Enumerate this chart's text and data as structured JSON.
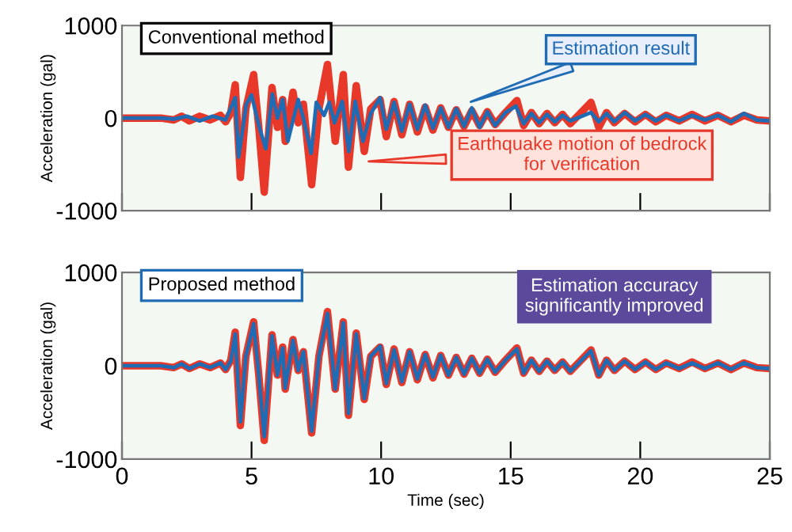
{
  "chart_data": [
    {
      "type": "line",
      "ylabel": "Acceleration (gal)",
      "xlim": [
        0,
        25
      ],
      "ylim": [
        -1000,
        1000
      ],
      "xticks": [
        0,
        5,
        10,
        15,
        20,
        25
      ],
      "yticks": [
        -1000,
        0,
        1000
      ],
      "tick_labels": "y",
      "legend": false,
      "grid": false,
      "annotations": [
        "Conventional method",
        {
          "text": "Estimation result",
          "x": 13.3,
          "y": 160
        },
        {
          "text": "Earthquake motion of bedrock\nfor verification",
          "x": 9.35,
          "y": -470
        }
      ],
      "series": [
        {
          "color": "#e8382a",
          "x": [
            0,
            1.5,
            2.0,
            2.3,
            2.6,
            3.0,
            3.4,
            3.8,
            4.0,
            4.2,
            4.37,
            4.57,
            4.78,
            5.08,
            5.28,
            5.49,
            5.79,
            6.0,
            6.2,
            6.3,
            6.6,
            6.8,
            7.0,
            7.32,
            7.6,
            7.93,
            8.23,
            8.54,
            8.74,
            9.04,
            9.35,
            9.6,
            9.96,
            10.2,
            10.5,
            10.8,
            11.1,
            11.4,
            11.7,
            12.0,
            12.3,
            12.6,
            12.9,
            13.2,
            13.5,
            13.8,
            14.1,
            14.4,
            14.8,
            15.24,
            15.5,
            15.8,
            16.1,
            16.4,
            16.7,
            17.0,
            17.3,
            18.1,
            18.4,
            18.7,
            19.0,
            19.4,
            19.8,
            20.2,
            20.6,
            21.0,
            21.5,
            22.0,
            22.5,
            23.0,
            23.5,
            24.0,
            24.5,
            25
          ],
          "values": [
            0,
            0,
            -20,
            20,
            -30,
            20,
            -20,
            30,
            -40,
            60,
            360,
            -640,
            100,
            470,
            -100,
            -800,
            330,
            -100,
            200,
            -250,
            280,
            -50,
            150,
            -720,
            100,
            580,
            -250,
            470,
            -530,
            350,
            -360,
            100,
            200,
            -200,
            180,
            -180,
            150,
            -150,
            120,
            -130,
            110,
            -100,
            90,
            -90,
            80,
            -80,
            70,
            -70,
            60,
            190,
            -80,
            60,
            -60,
            50,
            -50,
            40,
            -60,
            170,
            -100,
            60,
            -50,
            50,
            -40,
            40,
            -40,
            30,
            -30,
            40,
            -30,
            30,
            -40,
            30,
            -20,
            -30
          ]
        },
        {
          "color": "#1f6cb4",
          "x": [
            0,
            1.5,
            2.0,
            2.5,
            3.0,
            3.5,
            4.0,
            4.37,
            4.5,
            4.8,
            5.0,
            5.3,
            5.55,
            5.8,
            6.0,
            6.2,
            6.4,
            6.8,
            7.0,
            7.3,
            7.5,
            7.8,
            8.0,
            8.2,
            8.5,
            8.75,
            9.0,
            9.3,
            9.6,
            9.96,
            10.2,
            10.5,
            10.8,
            11.1,
            11.4,
            11.7,
            12.0,
            12.3,
            12.6,
            12.9,
            13.2,
            13.5,
            13.8,
            14.1,
            14.4,
            14.8,
            15.2,
            15.5,
            15.8,
            16.1,
            16.4,
            16.7,
            17.0,
            17.3,
            18.1,
            18.4,
            18.7,
            19.0,
            19.4,
            19.8,
            20.2,
            20.6,
            21.0,
            21.5,
            22.0,
            22.5,
            23.0,
            23.5,
            24.0,
            24.5,
            25
          ],
          "values": [
            0,
            0,
            -10,
            20,
            -30,
            20,
            -20,
            220,
            -420,
            150,
            250,
            -100,
            -330,
            260,
            0,
            200,
            -250,
            200,
            0,
            -380,
            170,
            30,
            170,
            -50,
            180,
            -360,
            180,
            -250,
            50,
            220,
            -120,
            170,
            -140,
            150,
            -120,
            140,
            -110,
            110,
            -100,
            100,
            -90,
            110,
            -100,
            70,
            -80,
            60,
            130,
            -60,
            50,
            -50,
            40,
            -40,
            30,
            -30,
            60,
            -40,
            50,
            -40,
            60,
            -30,
            40,
            -30,
            30,
            -30,
            30,
            -20,
            30,
            -40,
            50,
            -20,
            -30
          ]
        }
      ]
    },
    {
      "type": "line",
      "xlabel": "Time (sec)",
      "ylabel": "Acceleration (gal)",
      "xlim": [
        0,
        25
      ],
      "ylim": [
        -1000,
        1000
      ],
      "xticks": [
        0,
        5,
        10,
        15,
        20,
        25
      ],
      "yticks": [
        -1000,
        0,
        1000
      ],
      "legend": false,
      "grid": false,
      "annotations": [
        "Proposed method",
        "Estimation accuracy\nsignificantly improved"
      ],
      "series": [
        {
          "color": "#e8382a",
          "x": [
            0,
            1.5,
            2.0,
            2.3,
            2.6,
            3.0,
            3.4,
            3.8,
            4.0,
            4.2,
            4.37,
            4.57,
            4.78,
            5.08,
            5.28,
            5.49,
            5.79,
            6.0,
            6.2,
            6.3,
            6.6,
            6.8,
            7.0,
            7.32,
            7.6,
            7.93,
            8.23,
            8.54,
            8.74,
            9.04,
            9.35,
            9.6,
            9.96,
            10.2,
            10.5,
            10.8,
            11.1,
            11.4,
            11.7,
            12.0,
            12.3,
            12.6,
            12.9,
            13.2,
            13.5,
            13.8,
            14.1,
            14.4,
            14.8,
            15.24,
            15.5,
            15.8,
            16.1,
            16.4,
            16.7,
            17.0,
            17.3,
            18.1,
            18.4,
            18.7,
            19.0,
            19.4,
            19.8,
            20.2,
            20.6,
            21.0,
            21.5,
            22.0,
            22.5,
            23.0,
            23.5,
            24.0,
            24.5,
            25
          ],
          "values": [
            0,
            0,
            -20,
            20,
            -30,
            20,
            -20,
            30,
            -40,
            60,
            360,
            -640,
            100,
            470,
            -100,
            -800,
            330,
            -100,
            200,
            -250,
            280,
            -50,
            150,
            -720,
            100,
            580,
            -250,
            470,
            -530,
            350,
            -360,
            100,
            200,
            -200,
            180,
            -180,
            150,
            -150,
            120,
            -130,
            110,
            -100,
            90,
            -90,
            80,
            -80,
            70,
            -70,
            60,
            190,
            -80,
            60,
            -60,
            50,
            -50,
            40,
            -60,
            170,
            -100,
            60,
            -50,
            50,
            -40,
            40,
            -40,
            30,
            -30,
            40,
            -30,
            30,
            -40,
            30,
            -20,
            -30
          ]
        },
        {
          "color": "#1f6cb4",
          "x": [
            0,
            1.5,
            2.0,
            2.3,
            2.6,
            3.0,
            3.4,
            3.8,
            4.0,
            4.2,
            4.37,
            4.57,
            4.78,
            5.08,
            5.28,
            5.49,
            5.79,
            6.0,
            6.2,
            6.3,
            6.6,
            6.8,
            7.0,
            7.32,
            7.6,
            7.93,
            8.23,
            8.54,
            8.74,
            9.04,
            9.35,
            9.6,
            9.96,
            10.2,
            10.5,
            10.8,
            11.1,
            11.4,
            11.7,
            12.0,
            12.3,
            12.6,
            12.9,
            13.2,
            13.5,
            13.8,
            14.1,
            14.4,
            14.8,
            15.24,
            15.5,
            15.8,
            16.1,
            16.4,
            16.7,
            17.0,
            17.3,
            18.1,
            18.4,
            18.7,
            19.0,
            19.4,
            19.8,
            20.2,
            20.6,
            21.0,
            21.5,
            22.0,
            22.5,
            23.0,
            23.5,
            24.0,
            24.5,
            25
          ],
          "values": [
            0,
            0,
            -20,
            20,
            -30,
            20,
            -20,
            30,
            -40,
            50,
            340,
            -600,
            100,
            450,
            -100,
            -760,
            320,
            -100,
            190,
            -240,
            270,
            -50,
            150,
            -700,
            100,
            560,
            -250,
            460,
            -510,
            340,
            -350,
            100,
            210,
            -190,
            170,
            -170,
            150,
            -140,
            120,
            -120,
            110,
            -100,
            90,
            -90,
            80,
            -80,
            70,
            -70,
            60,
            180,
            -80,
            60,
            -60,
            50,
            -50,
            40,
            -60,
            160,
            -100,
            60,
            -50,
            50,
            -40,
            40,
            -40,
            30,
            -30,
            30,
            -30,
            30,
            -40,
            30,
            -20,
            -30
          ]
        }
      ]
    }
  ]
}
